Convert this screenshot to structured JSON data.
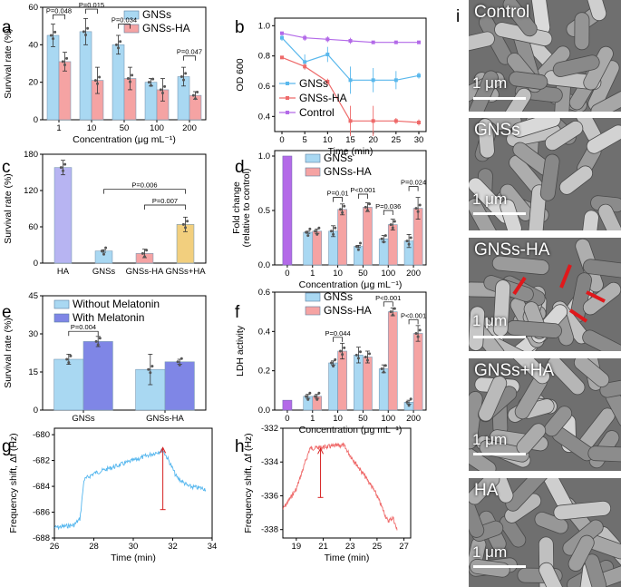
{
  "panel_labels": {
    "a": "a",
    "b": "b",
    "c": "c",
    "d": "d",
    "e": "e",
    "f": "f",
    "g": "g",
    "h": "h",
    "i": "i"
  },
  "colors": {
    "blue": "#a9d8f2",
    "red": "#f5a3a3",
    "purple": "#b7b4f2",
    "orange": "#f2cf7e",
    "blue2": "#7f86e6",
    "lineBlue": "#5ab8ec",
    "lineRed": "#ee6a6a",
    "lineViolet": "#b36ae8"
  },
  "chart_data": [
    {
      "id": "a",
      "type": "bar",
      "ylabel": "Survival rate (%)",
      "xlabel": "Concentration (μg mL⁻¹)",
      "categories": [
        "1",
        "10",
        "50",
        "100",
        "200"
      ],
      "ylim": [
        0,
        60
      ],
      "yticks": [
        "0",
        "20",
        "40",
        "60"
      ],
      "series": [
        {
          "name": "GNSs",
          "values": [
            45,
            47,
            40,
            20,
            23
          ],
          "err": [
            6,
            7,
            5,
            2,
            5
          ]
        },
        {
          "name": "GNSs-HA",
          "values": [
            31,
            21,
            22,
            16,
            13
          ],
          "err": [
            5,
            7,
            6,
            6,
            2
          ]
        }
      ],
      "annotations": [
        "P=0.048",
        "P=0.015",
        "P=0.034",
        "P=0.047"
      ]
    },
    {
      "id": "b",
      "type": "line",
      "ylabel": "OD 600",
      "xlabel": "Time (min)",
      "x": [
        0,
        5,
        10,
        15,
        20,
        25,
        30
      ],
      "ylim": [
        0.3,
        1.05
      ],
      "yticks": [
        "0.4",
        "0.6",
        "0.8",
        "1.0"
      ],
      "xticks": [
        "0",
        "5",
        "10",
        "15",
        "20",
        "25",
        "30"
      ],
      "series": [
        {
          "name": "GNSs",
          "values": [
            0.92,
            0.76,
            0.81,
            0.64,
            0.64,
            0.64,
            0.67
          ],
          "err": [
            0.02,
            0.05,
            0.05,
            0.09,
            0.08,
            0.06,
            0.02
          ]
        },
        {
          "name": "GNSs-HA",
          "values": [
            0.79,
            0.73,
            0.63,
            0.37,
            0.37,
            0.37,
            0.36
          ],
          "err": [
            0.01,
            0.02,
            0.02,
            0.1,
            0.1,
            0.02,
            0.02
          ]
        },
        {
          "name": "Control",
          "values": [
            0.95,
            0.92,
            0.91,
            0.9,
            0.89,
            0.89,
            0.89
          ],
          "err": [
            0.01,
            0.02,
            0.02,
            0.02,
            0.01,
            0.01,
            0.01
          ]
        }
      ]
    },
    {
      "id": "c",
      "type": "bar",
      "ylabel": "Survival rate (%)",
      "categories": [
        "HA",
        "GNSs",
        "GNSs-HA",
        "GNSs+HA"
      ],
      "ylim": [
        0,
        180
      ],
      "yticks": [
        "0",
        "60",
        "120",
        "180"
      ],
      "values": [
        158,
        20,
        16,
        64
      ],
      "err": [
        12,
        2,
        7,
        12
      ],
      "annotations": [
        "P=0.006",
        "P=0.007"
      ]
    },
    {
      "id": "d",
      "type": "bar",
      "ylabel": "Fold change",
      "ylabel2": "(relative to control)",
      "xlabel": "Concentration (μg mL⁻¹)",
      "categories": [
        "0",
        "1",
        "10",
        "50",
        "100",
        "200"
      ],
      "ylim": [
        0,
        1.05
      ],
      "yticks": [
        "0.0",
        "0.5",
        "1.0"
      ],
      "control": 1.0,
      "series": [
        {
          "name": "GNSs",
          "values": [
            null,
            0.3,
            0.31,
            0.17,
            0.24,
            0.22
          ],
          "err": [
            0,
            0.01,
            0.05,
            0.01,
            0.03,
            0.06
          ]
        },
        {
          "name": "GNSs-HA",
          "values": [
            null,
            0.31,
            0.51,
            0.53,
            0.37,
            0.52
          ],
          "err": [
            0,
            0.02,
            0.05,
            0.04,
            0.05,
            0.1
          ]
        }
      ],
      "annotations": [
        "P=0.01",
        "P<0.001",
        "P=0.036",
        "P=0.024"
      ]
    },
    {
      "id": "e",
      "type": "bar",
      "ylabel": "Survival rate (%)",
      "categories": [
        "GNSs",
        "GNSs-HA"
      ],
      "ylim": [
        0,
        45
      ],
      "yticks": [
        "0",
        "15",
        "30",
        "45"
      ],
      "series": [
        {
          "name": "Without Melatonin",
          "values": [
            20,
            16
          ],
          "err": [
            2,
            6
          ]
        },
        {
          "name": "With Melatonin",
          "values": [
            27,
            19
          ],
          "err": [
            2,
            1
          ]
        }
      ],
      "annotations": [
        "P=0.004"
      ]
    },
    {
      "id": "f",
      "type": "bar",
      "ylabel": "LDH activity",
      "xlabel": "Concentration (μg mL⁻¹)",
      "categories": [
        "0",
        "1",
        "10",
        "50",
        "100",
        "200"
      ],
      "ylim": [
        0,
        0.6
      ],
      "yticks": [
        "0.0",
        "0.2",
        "0.4",
        "0.6"
      ],
      "control": 0.05,
      "series": [
        {
          "name": "GNSs",
          "values": [
            null,
            0.07,
            0.24,
            0.28,
            0.21,
            0.04
          ],
          "err": [
            0,
            0.01,
            0.01,
            0.04,
            0.02,
            0.01
          ]
        },
        {
          "name": "GNSs-HA",
          "values": [
            null,
            0.07,
            0.3,
            0.27,
            0.5,
            0.39
          ],
          "err": [
            0,
            0.01,
            0.04,
            0.03,
            0.02,
            0.04
          ]
        }
      ],
      "annotations": [
        "P=0.044",
        "P<0.001",
        "P<0.001"
      ]
    },
    {
      "id": "g",
      "type": "line",
      "ylabel": "Frequency shift, Δf (Hz)",
      "xlabel": "Time (min)",
      "xlim": [
        26,
        34
      ],
      "ylim": [
        -688,
        -679.5
      ],
      "xticks": [
        "26",
        "28",
        "30",
        "32",
        "34"
      ],
      "yticks": [
        "-688",
        "-686",
        "-684",
        "-682",
        "-680"
      ],
      "series": [
        {
          "name": "trace",
          "color": "#54b6ee"
        }
      ]
    },
    {
      "id": "h",
      "type": "line",
      "ylabel": "Frequency shift, Δf (Hz)",
      "xlabel": "Time (min)",
      "xlim": [
        18,
        27.5
      ],
      "ylim": [
        -338.5,
        -332
      ],
      "xticks": [
        "19",
        "21",
        "23",
        "25",
        "27"
      ],
      "yticks": [
        "-338",
        "-336",
        "-334",
        "-332"
      ],
      "series": [
        {
          "name": "trace",
          "color": "#ef6b6b"
        }
      ]
    }
  ],
  "sem": [
    {
      "label": "Control",
      "scale": "1 μm"
    },
    {
      "label": "GNSs",
      "scale": "1 μm"
    },
    {
      "label": "GNSs-HA",
      "scale": "1 μm"
    },
    {
      "label": "GNSs+HA",
      "scale": "1 μm"
    },
    {
      "label": "HA",
      "scale": "1 μm"
    }
  ]
}
